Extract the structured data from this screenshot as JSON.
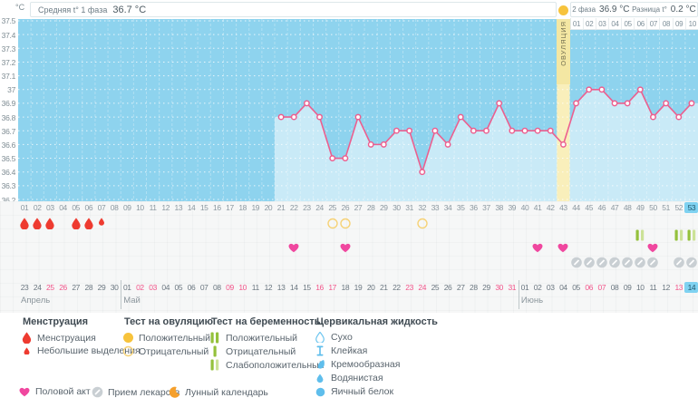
{
  "header": {
    "unit_label": "°C",
    "phase1_label": "Средняя t° 1 фаза",
    "phase1_value": "36.7 °C",
    "phase2_label": "2 фаза",
    "phase2_value": "36.9 °C",
    "diff_label": "Разница t°",
    "diff_value": "0.2 °C",
    "ovulation_label": "ОВУЛЯЦИЯ"
  },
  "chart_data": {
    "type": "line",
    "ylabel": "°C",
    "ylim": [
      36.2,
      37.5
    ],
    "yticks": [
      "37.5",
      "37.4",
      "37.3",
      "37.2",
      "37.1",
      "37",
      "36.9",
      "36.8",
      "36.7",
      "36.6",
      "36.5",
      "36.4",
      "36.3",
      "36.2"
    ],
    "total_days": 53,
    "current_day": 53,
    "ovulation_day": 43,
    "phase2_day_labels": [
      "01",
      "02",
      "03",
      "04",
      "05",
      "06",
      "07",
      "08",
      "09",
      "10"
    ],
    "x": [
      21,
      22,
      23,
      24,
      25,
      26,
      27,
      28,
      29,
      30,
      31,
      32,
      33,
      34,
      35,
      36,
      37,
      38,
      39,
      40,
      41,
      42,
      43,
      44,
      45,
      46,
      47,
      48,
      49,
      50,
      51,
      52,
      53
    ],
    "temperatures": [
      36.8,
      36.8,
      36.9,
      36.8,
      36.5,
      36.5,
      36.8,
      36.6,
      36.6,
      36.7,
      36.7,
      36.4,
      36.7,
      36.6,
      36.8,
      36.7,
      36.7,
      36.9,
      36.7,
      36.7,
      36.7,
      36.7,
      36.6,
      36.9,
      37,
      37,
      36.9,
      36.9,
      37,
      36.8,
      36.9,
      36.8,
      36.9
    ],
    "colors": {
      "plot_bg": "#8ed3ee",
      "area_fill": "#c9eaf7",
      "line": "#ec5f8f",
      "ovulation_band": "#f9efbb",
      "current_day_badge": "#7fd2f1",
      "weekend_date": "#f2558a"
    }
  },
  "events": {
    "menstruation_days": [
      1,
      2,
      3,
      5,
      6
    ],
    "menstruation_light_days": [
      7
    ],
    "ovulation_test_negative_days": [
      25,
      26,
      32
    ],
    "ovulation_test_positive_days": [
      43
    ],
    "pregnancy_test_weak_positive_days": [
      49,
      52,
      53
    ],
    "intercourse_days": [
      22,
      26,
      41,
      43,
      50
    ],
    "medication_days": [
      44,
      45,
      46,
      47,
      48,
      49,
      50,
      52,
      53
    ]
  },
  "calendar": {
    "months": [
      {
        "name": "Апрель",
        "start_cycle_day": 1,
        "dates": [
          "23",
          "24",
          "25",
          "26",
          "27",
          "28",
          "29",
          "30"
        ],
        "weekend_dates": [
          "25",
          "26"
        ]
      },
      {
        "name": "Май",
        "start_cycle_day": 9,
        "dates": [
          "01",
          "02",
          "03",
          "04",
          "05",
          "06",
          "07",
          "08",
          "09",
          "10",
          "11",
          "12",
          "13",
          "14",
          "15",
          "16",
          "17",
          "18",
          "19",
          "20",
          "21",
          "22",
          "23",
          "24",
          "25",
          "26",
          "27",
          "28",
          "29",
          "30",
          "31"
        ],
        "weekend_dates": [
          "02",
          "03",
          "09",
          "10",
          "16",
          "17",
          "23",
          "24",
          "30",
          "31"
        ]
      },
      {
        "name": "Июнь",
        "start_cycle_day": 40,
        "dates": [
          "01",
          "02",
          "03",
          "04",
          "05",
          "06",
          "07",
          "08",
          "09",
          "10",
          "11",
          "12",
          "13",
          "14"
        ],
        "weekend_dates": [
          "06",
          "07",
          "13"
        ],
        "current_date": "14"
      }
    ]
  },
  "legend": {
    "sections": [
      {
        "title": "Менструация",
        "items": [
          {
            "icon": "menses-large",
            "label": "Менструация"
          },
          {
            "icon": "menses-small",
            "label": "Небольшие выделения"
          }
        ]
      },
      {
        "title": "Тест на овуляцию",
        "items": [
          {
            "icon": "ovu-pos",
            "label": "Положительный"
          },
          {
            "icon": "ovu-neg",
            "label": "Отрицательный"
          }
        ]
      },
      {
        "title": "Тест на беременность",
        "items": [
          {
            "icon": "preg-pos",
            "label": "Положительный"
          },
          {
            "icon": "preg-neg",
            "label": "Отрицательный"
          },
          {
            "icon": "preg-weak",
            "label": "Слабоположительный"
          }
        ]
      },
      {
        "title": "Цервикальная жидкость",
        "items": [
          {
            "icon": "cf-dry",
            "label": "Сухо"
          },
          {
            "icon": "cf-sticky",
            "label": "Клейкая"
          },
          {
            "icon": "cf-creamy",
            "label": "Кремообразная"
          },
          {
            "icon": "cf-watery",
            "label": "Водянистая"
          },
          {
            "icon": "cf-eggwhite",
            "label": "Яичный белок"
          }
        ]
      }
    ],
    "footer_items": [
      {
        "icon": "heart",
        "label": "Половой акт"
      },
      {
        "icon": "pill",
        "label": "Прием лекарств"
      },
      {
        "icon": "moon",
        "label": "Лунный календарь"
      }
    ]
  }
}
